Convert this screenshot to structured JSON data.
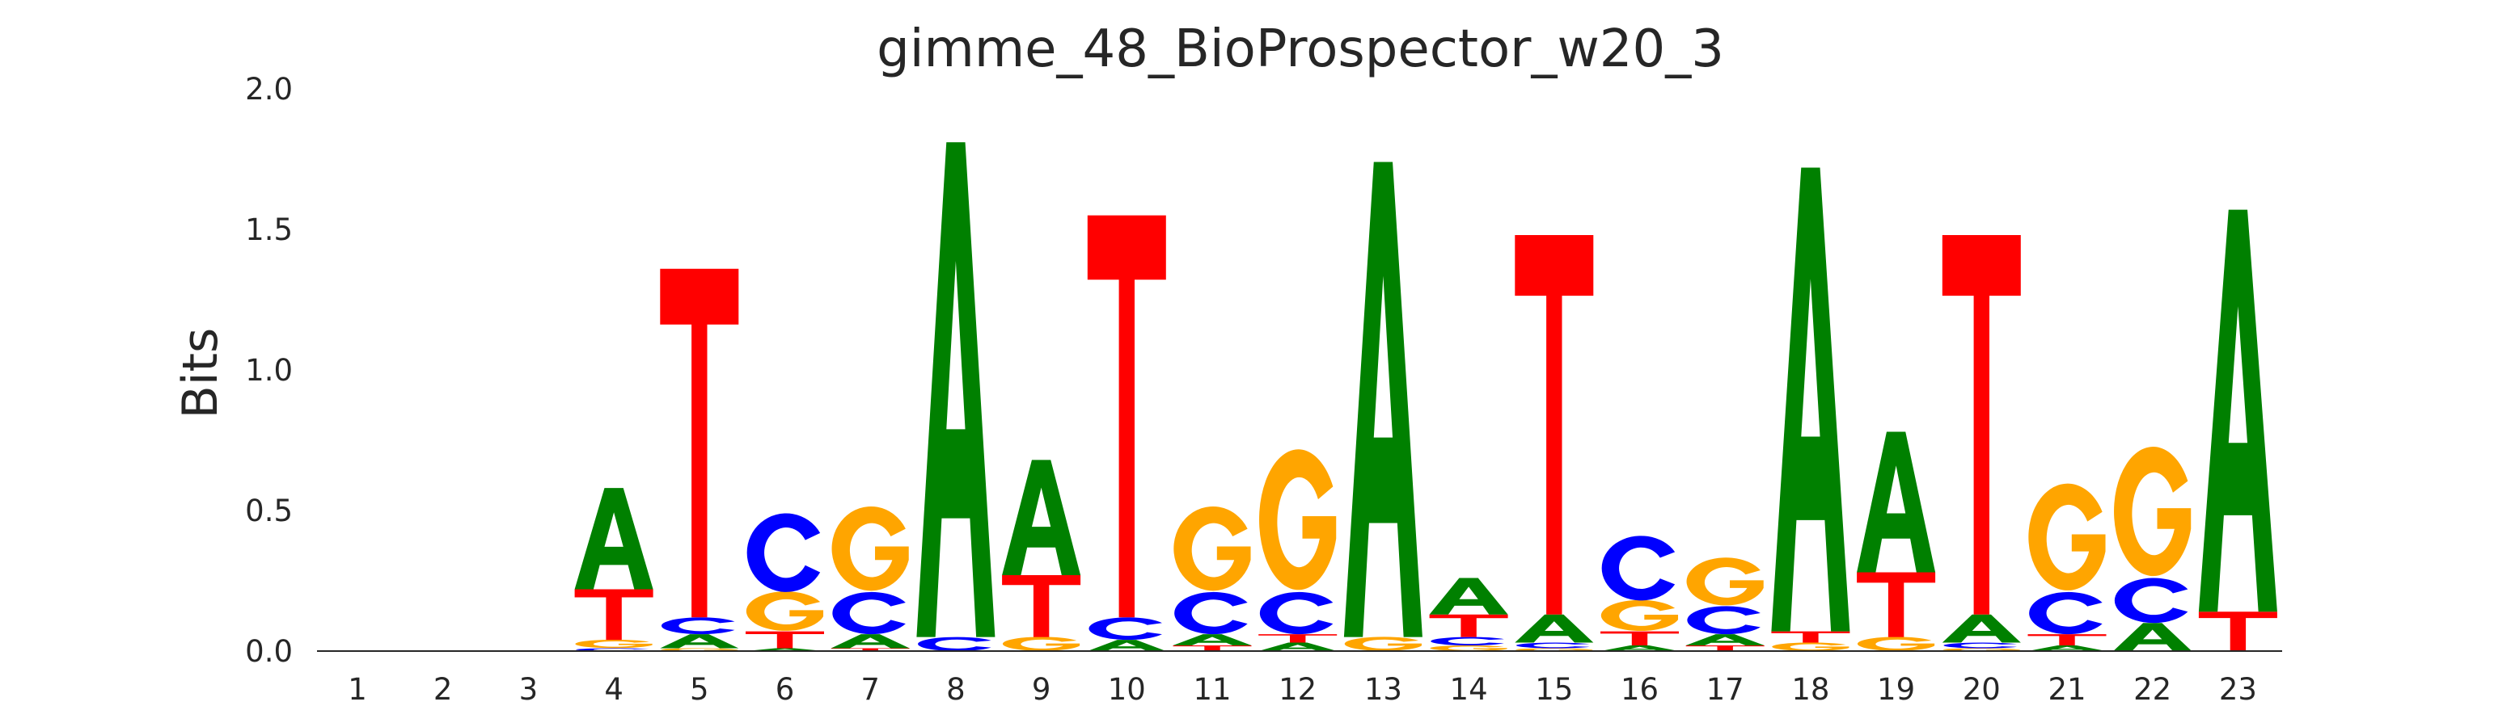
{
  "chart_data": {
    "type": "sequence-logo",
    "title": "gimme_48_BioProspector_w20_3",
    "xlabel": "",
    "ylabel": "Bits",
    "ylim": [
      0,
      2.0
    ],
    "yticks": [
      "0.0",
      "0.5",
      "1.0",
      "1.5",
      "2.0"
    ],
    "ytick_values": [
      0,
      0.5,
      1.0,
      1.5,
      2.0
    ],
    "positions": [
      "1",
      "2",
      "3",
      "4",
      "5",
      "6",
      "7",
      "8",
      "9",
      "10",
      "11",
      "12",
      "13",
      "14",
      "15",
      "16",
      "17",
      "18",
      "19",
      "20",
      "21",
      "22",
      "23"
    ],
    "colors": {
      "A": "#008000",
      "C": "#0000ff",
      "G": "#ffa500",
      "T": "#ff0000"
    },
    "stacks": [
      [],
      [],
      [],
      [
        [
          "C",
          0.01
        ],
        [
          "G",
          0.03
        ],
        [
          "T",
          0.18
        ],
        [
          "A",
          0.36
        ]
      ],
      [
        [
          "G",
          0.01
        ],
        [
          "A",
          0.05
        ],
        [
          "C",
          0.06
        ],
        [
          "T",
          1.24
        ]
      ],
      [
        [
          "A",
          0.01
        ],
        [
          "T",
          0.06
        ],
        [
          "G",
          0.14
        ],
        [
          "C",
          0.28
        ]
      ],
      [
        [
          "T",
          0.01
        ],
        [
          "A",
          0.05
        ],
        [
          "C",
          0.15
        ],
        [
          "G",
          0.3
        ]
      ],
      [
        [
          "C",
          0.05
        ],
        [
          "A",
          1.76
        ]
      ],
      [
        [
          "G",
          0.05
        ],
        [
          "T",
          0.22
        ],
        [
          "A",
          0.41
        ]
      ],
      [
        [
          "A",
          0.04
        ],
        [
          "C",
          0.08
        ],
        [
          "T",
          1.43
        ]
      ],
      [
        [
          "T",
          0.02
        ],
        [
          "A",
          0.04
        ],
        [
          "C",
          0.15
        ],
        [
          "G",
          0.3
        ]
      ],
      [
        [
          "A",
          0.03
        ],
        [
          "T",
          0.03
        ],
        [
          "C",
          0.15
        ],
        [
          "G",
          0.5
        ]
      ],
      [
        [
          "G",
          0.05
        ],
        [
          "A",
          1.69
        ]
      ],
      [
        [
          "G",
          0.02
        ],
        [
          "C",
          0.03
        ],
        [
          "T",
          0.08
        ],
        [
          "A",
          0.13
        ]
      ],
      [
        [
          "G",
          0.01
        ],
        [
          "C",
          0.02
        ],
        [
          "A",
          0.1
        ],
        [
          "T",
          1.35
        ]
      ],
      [
        [
          "A",
          0.02
        ],
        [
          "T",
          0.05
        ],
        [
          "G",
          0.11
        ],
        [
          "C",
          0.23
        ]
      ],
      [
        [
          "T",
          0.02
        ],
        [
          "A",
          0.04
        ],
        [
          "C",
          0.1
        ],
        [
          "G",
          0.17
        ]
      ],
      [
        [
          "G",
          0.03
        ],
        [
          "T",
          0.04
        ],
        [
          "A",
          1.65
        ]
      ],
      [
        [
          "G",
          0.05
        ],
        [
          "T",
          0.23
        ],
        [
          "A",
          0.5
        ]
      ],
      [
        [
          "G",
          0.01
        ],
        [
          "C",
          0.02
        ],
        [
          "A",
          0.1
        ],
        [
          "T",
          1.35
        ]
      ],
      [
        [
          "A",
          0.02
        ],
        [
          "T",
          0.04
        ],
        [
          "C",
          0.15
        ],
        [
          "G",
          0.38
        ]
      ],
      [
        [
          "A",
          0.1
        ],
        [
          "C",
          0.16
        ],
        [
          "G",
          0.46
        ]
      ],
      [
        [
          "T",
          0.14
        ],
        [
          "A",
          1.43
        ]
      ]
    ]
  }
}
